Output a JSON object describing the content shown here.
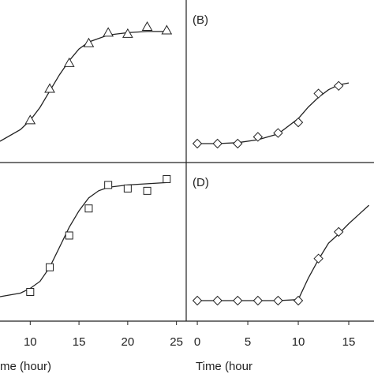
{
  "chart_data": [
    {
      "type": "scatter",
      "panel_label": "",
      "marker": "triangle",
      "xlim": [
        6.9,
        26.0
      ],
      "ylim": [
        0,
        1
      ],
      "x_ticks": [],
      "xlabel": "",
      "points": [
        {
          "x": 10,
          "y": 0.2
        },
        {
          "x": 12,
          "y": 0.47
        },
        {
          "x": 14,
          "y": 0.69
        },
        {
          "x": 16,
          "y": 0.86
        },
        {
          "x": 18,
          "y": 0.95
        },
        {
          "x": 20,
          "y": 0.94
        },
        {
          "x": 22,
          "y": 1.0
        },
        {
          "x": 24,
          "y": 0.97
        }
      ],
      "fit": [
        {
          "x": 6.9,
          "y": 0.02
        },
        {
          "x": 9,
          "y": 0.12
        },
        {
          "x": 10,
          "y": 0.2
        },
        {
          "x": 11,
          "y": 0.31
        },
        {
          "x": 12,
          "y": 0.45
        },
        {
          "x": 13,
          "y": 0.59
        },
        {
          "x": 14,
          "y": 0.71
        },
        {
          "x": 15,
          "y": 0.81
        },
        {
          "x": 16,
          "y": 0.87
        },
        {
          "x": 18,
          "y": 0.93
        },
        {
          "x": 20,
          "y": 0.95
        },
        {
          "x": 22,
          "y": 0.96
        },
        {
          "x": 24,
          "y": 0.96
        }
      ]
    },
    {
      "type": "scatter",
      "panel_label": "(B)",
      "marker": "diamond",
      "xlim": [
        -1.1,
        17.5
      ],
      "ylim": [
        0,
        1
      ],
      "x_ticks": [],
      "xlabel": "",
      "points": [
        {
          "x": 0,
          "y": 0.0
        },
        {
          "x": 2,
          "y": 0.0
        },
        {
          "x": 4,
          "y": 0.0
        },
        {
          "x": 6,
          "y": 0.07
        },
        {
          "x": 8,
          "y": 0.11
        },
        {
          "x": 10,
          "y": 0.22
        },
        {
          "x": 12,
          "y": 0.52
        },
        {
          "x": 14,
          "y": 0.6
        }
      ],
      "fit": [
        {
          "x": 0,
          "y": 0.0
        },
        {
          "x": 2,
          "y": 0.0
        },
        {
          "x": 4,
          "y": 0.01
        },
        {
          "x": 6,
          "y": 0.04
        },
        {
          "x": 8,
          "y": 0.1
        },
        {
          "x": 10,
          "y": 0.26
        },
        {
          "x": 11,
          "y": 0.38
        },
        {
          "x": 12,
          "y": 0.48
        },
        {
          "x": 13,
          "y": 0.56
        },
        {
          "x": 14,
          "y": 0.61
        },
        {
          "x": 15,
          "y": 0.63
        }
      ]
    },
    {
      "type": "scatter",
      "panel_label": "",
      "marker": "square",
      "xlim": [
        6.9,
        26.0
      ],
      "ylim": [
        0,
        1
      ],
      "x_ticks": [
        10,
        15,
        20,
        25
      ],
      "x_tick_labels": [
        "10",
        "15",
        "20",
        "25"
      ],
      "xlabel": "me (hour)",
      "points": [
        {
          "x": 10,
          "y": 0.0
        },
        {
          "x": 12,
          "y": 0.21
        },
        {
          "x": 14,
          "y": 0.48
        },
        {
          "x": 16,
          "y": 0.71
        },
        {
          "x": 18,
          "y": 0.91
        },
        {
          "x": 20,
          "y": 0.88
        },
        {
          "x": 22,
          "y": 0.86
        },
        {
          "x": 24,
          "y": 0.96
        }
      ],
      "fit": [
        {
          "x": 6.9,
          "y": -0.04
        },
        {
          "x": 9,
          "y": -0.01
        },
        {
          "x": 10,
          "y": 0.03
        },
        {
          "x": 11,
          "y": 0.09
        },
        {
          "x": 12,
          "y": 0.21
        },
        {
          "x": 13,
          "y": 0.38
        },
        {
          "x": 14,
          "y": 0.55
        },
        {
          "x": 15,
          "y": 0.69
        },
        {
          "x": 16,
          "y": 0.8
        },
        {
          "x": 17,
          "y": 0.86
        },
        {
          "x": 18,
          "y": 0.89
        },
        {
          "x": 20,
          "y": 0.91
        },
        {
          "x": 22,
          "y": 0.92
        },
        {
          "x": 24,
          "y": 0.93
        }
      ]
    },
    {
      "type": "scatter",
      "panel_label": "(D)",
      "marker": "diamond",
      "xlim": [
        -1.1,
        17.5
      ],
      "ylim": [
        0,
        1
      ],
      "x_ticks": [
        0,
        5,
        10,
        15
      ],
      "x_tick_labels": [
        "0",
        "5",
        "10",
        "15"
      ],
      "xlabel": "Time (hour",
      "points": [
        {
          "x": 0,
          "y": 0.0
        },
        {
          "x": 2,
          "y": 0.0
        },
        {
          "x": 4,
          "y": 0.0
        },
        {
          "x": 6,
          "y": 0.0
        },
        {
          "x": 8,
          "y": 0.0
        },
        {
          "x": 10,
          "y": 0.0
        },
        {
          "x": 12,
          "y": 0.41
        },
        {
          "x": 14,
          "y": 0.67
        }
      ],
      "fit": [
        {
          "x": 0,
          "y": 0.0
        },
        {
          "x": 2,
          "y": 0.0
        },
        {
          "x": 4,
          "y": 0.0
        },
        {
          "x": 6,
          "y": 0.0
        },
        {
          "x": 8,
          "y": 0.0
        },
        {
          "x": 10,
          "y": 0.01
        },
        {
          "x": 11,
          "y": 0.22
        },
        {
          "x": 12,
          "y": 0.4
        },
        {
          "x": 13,
          "y": 0.56
        },
        {
          "x": 14,
          "y": 0.65
        },
        {
          "x": 15,
          "y": 0.75
        },
        {
          "x": 16,
          "y": 0.84
        },
        {
          "x": 17,
          "y": 0.93
        }
      ]
    }
  ]
}
